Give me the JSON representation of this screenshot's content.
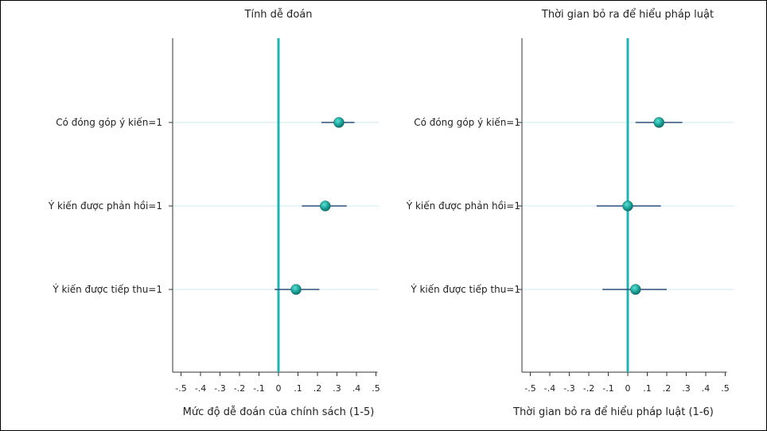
{
  "colors": {
    "reference_line": "#1fb5b5",
    "point": "#1aa39a",
    "ci_line": "#2c4f7c",
    "row_line": "#cfe9f0",
    "axis": "#333333"
  },
  "chart_data": [
    {
      "type": "scatter",
      "subtype": "coefficient-plot",
      "title": "Tính dễ đoán",
      "xlabel": "Mức độ dễ đoán của chính sách (1-5)",
      "xlim": [
        -0.55,
        0.55
      ],
      "xticks": [
        -0.5,
        -0.4,
        -0.3,
        -0.2,
        -0.1,
        0,
        0.1,
        0.2,
        0.3,
        0.4,
        0.5
      ],
      "xtick_labels": [
        "-.5",
        "-.4",
        "-.3",
        "-.2",
        "-.1",
        "0",
        ".1",
        ".2",
        ".3",
        ".4",
        ".5"
      ],
      "reference_x": 0,
      "categories": [
        "Có đóng góp ý kiến=1",
        "Ý kiến được phản hồi=1",
        "Ý kiến được tiếp thu=1"
      ],
      "estimates": [
        0.31,
        0.24,
        0.09
      ],
      "ci_low": [
        0.22,
        0.12,
        -0.02
      ],
      "ci_high": [
        0.39,
        0.35,
        0.21
      ]
    },
    {
      "type": "scatter",
      "subtype": "coefficient-plot",
      "title": "Thời gian bỏ ra để hiểu pháp luật",
      "xlabel": "Thời gian bỏ ra để hiểu pháp luật (1-6)",
      "xlim": [
        -0.55,
        0.55
      ],
      "xticks": [
        -0.5,
        -0.4,
        -0.3,
        -0.2,
        -0.1,
        0,
        0.1,
        0.2,
        0.3,
        0.4,
        0.5
      ],
      "xtick_labels": [
        "-.5",
        "-.4",
        "-.3",
        "-.2",
        "-.1",
        "0",
        ".1",
        ".2",
        ".3",
        ".4",
        ".5"
      ],
      "reference_x": 0,
      "categories": [
        "Có đóng góp ý kiến=1",
        "Ý kiến được phản hồi=1",
        "Ý kiến được tiếp thu=1"
      ],
      "estimates": [
        0.16,
        0.0,
        0.04
      ],
      "ci_low": [
        0.04,
        -0.16,
        -0.13
      ],
      "ci_high": [
        0.28,
        0.17,
        0.2
      ]
    }
  ]
}
